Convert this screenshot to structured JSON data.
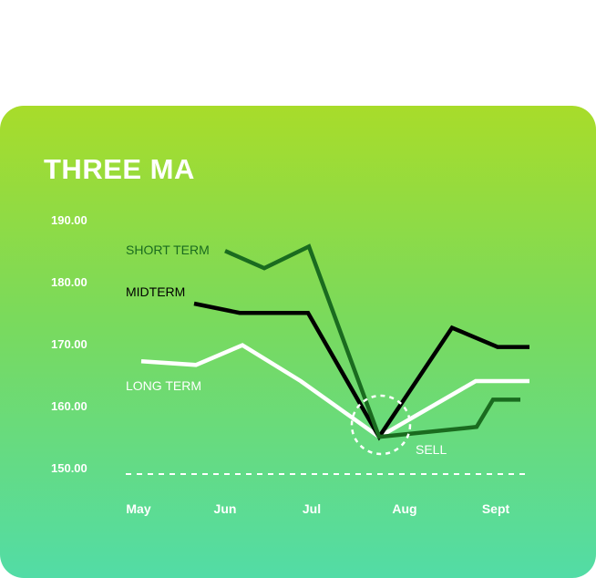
{
  "chart_data": {
    "type": "line",
    "title": "THREE MA",
    "x_categories": [
      "May",
      "Jun",
      "Jul",
      "Aug",
      "Sept"
    ],
    "y_ticks": [
      "190.00",
      "180.00",
      "170.00",
      "160.00",
      "150.00"
    ],
    "ylim": [
      150,
      190
    ],
    "grid": false,
    "series": [
      {
        "name": "SHORT TERM",
        "color": "#1a6b1f",
        "points": [
          [
            247,
            186.0
          ],
          [
            290,
            183.2
          ],
          [
            339,
            186.7
          ],
          [
            416,
            156.0
          ],
          [
            523,
            157.6
          ],
          [
            541,
            162.0
          ],
          [
            571,
            162.0
          ]
        ]
      },
      {
        "name": "MIDTERM",
        "color": "#000000",
        "points": [
          [
            213,
            177.5
          ],
          [
            263,
            176.0
          ],
          [
            338,
            176.0
          ],
          [
            416,
            156.0
          ],
          [
            496,
            173.6
          ],
          [
            546,
            170.5
          ],
          [
            581,
            170.5
          ]
        ]
      },
      {
        "name": "LONG TERM",
        "color": "#ffffff",
        "points": [
          [
            155,
            168.2
          ],
          [
            215,
            167.6
          ],
          [
            266,
            170.8
          ],
          [
            330,
            165.0
          ],
          [
            416,
            156.0
          ],
          [
            522,
            165.0
          ],
          [
            581,
            165.0
          ]
        ]
      }
    ],
    "annotation": {
      "label": "SELL",
      "x_pos": 416,
      "y": 156.0
    }
  }
}
